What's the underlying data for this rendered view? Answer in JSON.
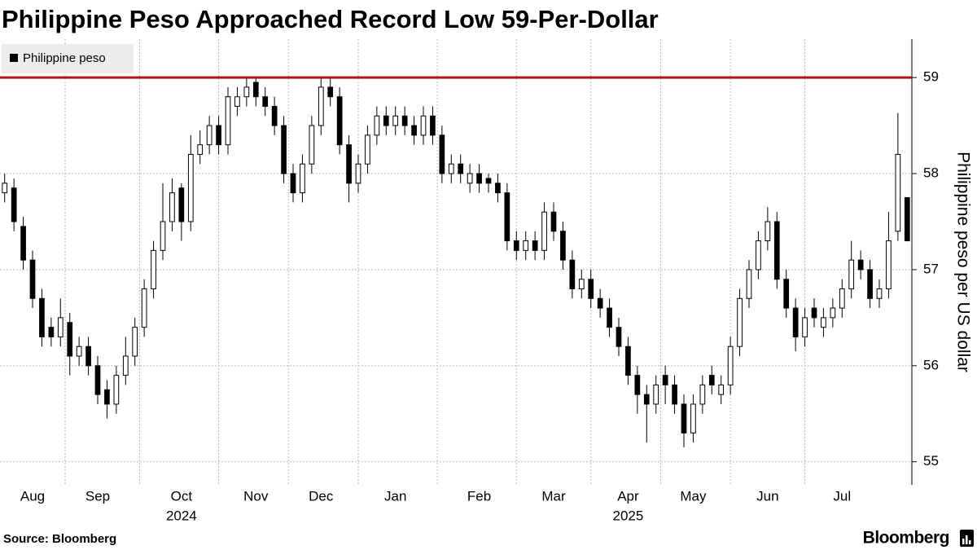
{
  "chart_data": {
    "type": "candlestick",
    "title": "Philippine Peso Approached Record Low 59-Per-Dollar",
    "y_axis_label": "Philippine peso per US dollar",
    "source": "Source: Bloomberg",
    "brand": "Bloomberg",
    "categories": [
      null,
      null,
      null,
      "Aug",
      null,
      null,
      null,
      null,
      null,
      null,
      "Sep",
      null,
      null,
      null,
      null,
      null,
      null,
      null,
      null,
      "Oct",
      null,
      null,
      null,
      null,
      null,
      null,
      null,
      "Nov",
      null,
      null,
      null,
      null,
      null,
      null,
      "Dec",
      null,
      null,
      null,
      null,
      null,
      null,
      null,
      "Jan",
      null,
      null,
      null,
      null,
      null,
      null,
      null,
      null,
      "Feb",
      null,
      null,
      null,
      null,
      null,
      null,
      null,
      "Mar",
      null,
      null,
      null,
      null,
      null,
      null,
      null,
      "Apr",
      null,
      null,
      null,
      null,
      null,
      null,
      "May",
      null,
      null,
      null,
      null,
      null,
      null,
      null,
      "Jun",
      null,
      null,
      null,
      null,
      null,
      null,
      null,
      "Jul",
      null,
      null,
      null,
      null,
      null,
      null,
      null
    ],
    "category_years": [
      null,
      null,
      null,
      null,
      null,
      null,
      null,
      null,
      null,
      null,
      null,
      null,
      null,
      null,
      null,
      null,
      null,
      null,
      null,
      "2024",
      null,
      null,
      null,
      null,
      null,
      null,
      null,
      null,
      null,
      null,
      null,
      null,
      null,
      null,
      null,
      null,
      null,
      null,
      null,
      null,
      null,
      null,
      null,
      null,
      null,
      null,
      null,
      null,
      null,
      null,
      null,
      null,
      null,
      null,
      null,
      null,
      null,
      null,
      null,
      null,
      null,
      null,
      null,
      null,
      null,
      null,
      null,
      "2025",
      null,
      null,
      null,
      null,
      null,
      null,
      null,
      null,
      null,
      null,
      null,
      null,
      null,
      null,
      null,
      null,
      null,
      null,
      null,
      null,
      null,
      null,
      null,
      null,
      null,
      null,
      null,
      null,
      null,
      null
    ],
    "series": [
      {
        "name": "Philippine peso",
        "color": "#000000",
        "open": [
          57.8,
          57.85,
          57.45,
          57.1,
          56.7,
          56.4,
          56.3,
          56.45,
          56.1,
          56.2,
          56.0,
          55.75,
          55.6,
          55.9,
          56.1,
          56.4,
          56.8,
          57.2,
          57.5,
          57.85,
          57.5,
          58.2,
          58.3,
          58.5,
          58.3,
          58.7,
          58.8,
          58.95,
          58.8,
          58.7,
          58.5,
          58.0,
          57.8,
          58.1,
          58.5,
          58.9,
          58.8,
          58.3,
          57.9,
          58.1,
          58.4,
          58.6,
          58.5,
          58.6,
          58.5,
          58.4,
          58.6,
          58.4,
          58.0,
          58.1,
          57.9,
          58.0,
          57.95,
          57.9,
          57.8,
          57.3,
          57.2,
          57.3,
          57.2,
          57.6,
          57.4,
          57.1,
          56.8,
          56.9,
          56.7,
          56.6,
          56.4,
          56.2,
          55.9,
          55.7,
          55.6,
          55.9,
          55.8,
          55.6,
          55.3,
          55.6,
          55.9,
          55.7,
          55.8,
          56.2,
          56.7,
          57.0,
          57.3,
          57.5,
          56.9,
          56.6,
          56.3,
          56.6,
          56.4,
          56.5,
          56.6,
          56.8,
          57.1,
          57.0,
          56.7,
          56.8,
          57.4,
          57.75
        ],
        "high": [
          58.0,
          57.95,
          57.55,
          57.2,
          56.8,
          56.5,
          56.7,
          56.55,
          56.3,
          56.3,
          56.1,
          55.85,
          56.0,
          56.3,
          56.5,
          56.9,
          57.3,
          57.9,
          57.95,
          57.9,
          58.4,
          58.45,
          58.6,
          58.6,
          58.9,
          58.9,
          59.0,
          59.0,
          58.9,
          58.8,
          58.6,
          58.1,
          58.2,
          58.6,
          59.0,
          59.0,
          58.9,
          58.4,
          58.2,
          58.5,
          58.7,
          58.7,
          58.7,
          58.7,
          58.6,
          58.7,
          58.7,
          58.5,
          58.2,
          58.2,
          58.1,
          58.1,
          58.0,
          58.0,
          57.9,
          57.4,
          57.4,
          57.4,
          57.7,
          57.7,
          57.5,
          57.2,
          57.0,
          57.0,
          56.8,
          56.7,
          56.5,
          56.3,
          56.0,
          55.8,
          55.9,
          56.0,
          55.9,
          55.7,
          55.7,
          55.9,
          56.0,
          55.9,
          56.3,
          56.8,
          57.1,
          57.4,
          57.65,
          57.6,
          57.0,
          56.7,
          56.6,
          56.7,
          56.6,
          56.7,
          56.9,
          57.3,
          57.2,
          57.1,
          56.9,
          57.6,
          58.63,
          57.75
        ],
        "low": [
          57.7,
          57.4,
          57.0,
          56.6,
          56.2,
          56.2,
          56.2,
          55.9,
          56.0,
          55.9,
          55.6,
          55.45,
          55.5,
          55.8,
          56.0,
          56.3,
          56.7,
          57.1,
          57.4,
          57.3,
          57.4,
          58.1,
          58.2,
          58.2,
          58.2,
          58.6,
          58.7,
          58.7,
          58.6,
          58.4,
          57.9,
          57.7,
          57.7,
          58.0,
          58.4,
          58.7,
          58.2,
          57.7,
          57.8,
          58.0,
          58.3,
          58.4,
          58.4,
          58.4,
          58.3,
          58.3,
          58.3,
          57.9,
          57.9,
          57.9,
          57.8,
          57.8,
          57.8,
          57.7,
          57.2,
          57.1,
          57.1,
          57.1,
          57.1,
          57.3,
          57.0,
          56.7,
          56.7,
          56.6,
          56.5,
          56.3,
          56.1,
          55.8,
          55.5,
          55.2,
          55.5,
          55.6,
          55.5,
          55.15,
          55.2,
          55.5,
          55.7,
          55.6,
          55.7,
          56.1,
          56.6,
          56.9,
          57.2,
          56.8,
          56.5,
          56.15,
          56.2,
          56.4,
          56.3,
          56.4,
          56.5,
          56.7,
          56.9,
          56.6,
          56.6,
          56.7,
          57.3,
          57.3
        ],
        "close": [
          57.9,
          57.5,
          57.1,
          56.7,
          56.3,
          56.3,
          56.5,
          56.1,
          56.2,
          56.0,
          55.7,
          55.6,
          55.9,
          56.1,
          56.4,
          56.8,
          57.2,
          57.5,
          57.8,
          57.5,
          58.2,
          58.3,
          58.5,
          58.3,
          58.8,
          58.8,
          58.9,
          58.8,
          58.7,
          58.5,
          58.0,
          57.8,
          58.1,
          58.5,
          58.9,
          58.8,
          58.3,
          57.9,
          58.1,
          58.4,
          58.6,
          58.5,
          58.6,
          58.5,
          58.4,
          58.6,
          58.4,
          58.0,
          58.1,
          58.0,
          58.0,
          57.9,
          57.9,
          57.8,
          57.3,
          57.2,
          57.3,
          57.2,
          57.6,
          57.4,
          57.1,
          56.8,
          56.9,
          56.7,
          56.6,
          56.4,
          56.2,
          55.9,
          55.7,
          55.6,
          55.8,
          55.8,
          55.6,
          55.3,
          55.6,
          55.8,
          55.8,
          55.8,
          56.2,
          56.7,
          57.0,
          57.3,
          57.5,
          56.9,
          56.6,
          56.3,
          56.5,
          56.5,
          56.5,
          56.6,
          56.8,
          57.1,
          57.0,
          56.7,
          56.8,
          57.3,
          58.2,
          57.3
        ]
      }
    ],
    "reference_line": {
      "value": 59,
      "color": "#b5121b"
    },
    "ylim": [
      54.76,
      59.4
    ],
    "yticks": [
      55,
      56,
      57,
      58,
      59
    ],
    "grid": true,
    "legend": "top-left"
  }
}
